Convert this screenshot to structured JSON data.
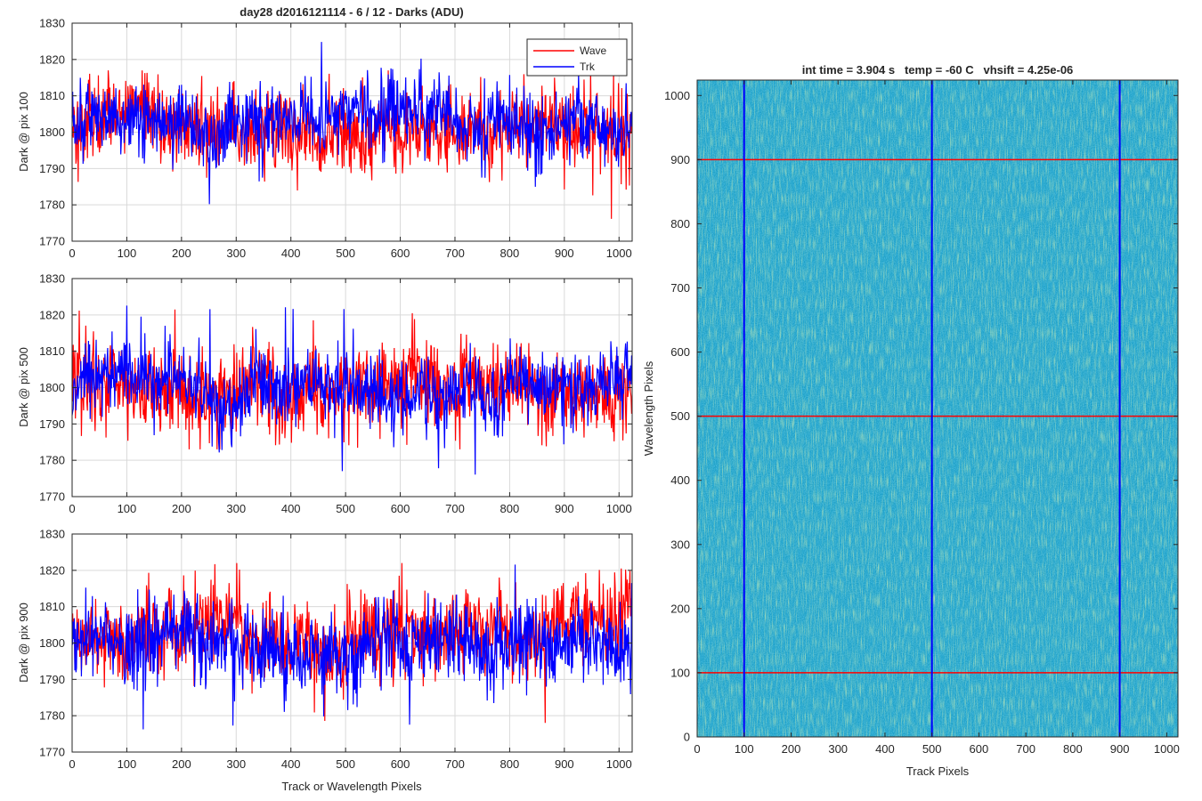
{
  "figure_title": "day28 d2016121114 - 6 / 12 - Darks (ADU)",
  "colors": {
    "wave": "#ff0000",
    "trk": "#0000ff",
    "grid": "#d9d9d9",
    "axis": "#262626"
  },
  "chart_data": [
    {
      "type": "line",
      "title": "day28 d2016121114 - 6 / 12 - Darks (ADU)",
      "xlabel": "",
      "ylabel": "Dark @ pix 100",
      "xlim": [
        0,
        1024
      ],
      "ylim": [
        1770,
        1830
      ],
      "x_ticks": [
        0,
        100,
        200,
        300,
        400,
        500,
        600,
        700,
        800,
        900,
        1000
      ],
      "y_ticks": [
        1770,
        1780,
        1790,
        1800,
        1810,
        1820,
        1830
      ],
      "grid": true,
      "legend": {
        "position": "top-right",
        "entries": [
          "Wave",
          "Trk"
        ]
      },
      "series": [
        {
          "name": "Wave",
          "color": "#ff0000",
          "mean": 1801,
          "noise": 5.5,
          "min": 1776,
          "max": 1817,
          "n": 1024
        },
        {
          "name": "Trk",
          "color": "#0000ff",
          "mean": 1802,
          "noise": 5.0,
          "min": 1780,
          "max": 1826,
          "n": 1024
        }
      ]
    },
    {
      "type": "line",
      "title": "",
      "xlabel": "",
      "ylabel": "Dark @ pix 500",
      "xlim": [
        0,
        1024
      ],
      "ylim": [
        1770,
        1830
      ],
      "x_ticks": [
        0,
        100,
        200,
        300,
        400,
        500,
        600,
        700,
        800,
        900,
        1000
      ],
      "y_ticks": [
        1770,
        1780,
        1790,
        1800,
        1810,
        1820,
        1830
      ],
      "grid": true,
      "series": [
        {
          "name": "Wave",
          "color": "#ff0000",
          "mean": 1801,
          "noise": 6.0,
          "min": 1783,
          "max": 1823,
          "n": 1024
        },
        {
          "name": "Trk",
          "color": "#0000ff",
          "mean": 1801,
          "noise": 5.0,
          "min": 1776,
          "max": 1823,
          "n": 1024
        }
      ]
    },
    {
      "type": "line",
      "title": "",
      "xlabel": "Track or Wavelength Pixels",
      "ylabel": "Dark @ pix 900",
      "xlim": [
        0,
        1024
      ],
      "ylim": [
        1770,
        1830
      ],
      "x_ticks": [
        0,
        100,
        200,
        300,
        400,
        500,
        600,
        700,
        800,
        900,
        1000
      ],
      "y_ticks": [
        1770,
        1780,
        1790,
        1800,
        1810,
        1820,
        1830
      ],
      "grid": true,
      "series": [
        {
          "name": "Wave",
          "color": "#ff0000",
          "mean": 1802,
          "noise": 6.0,
          "min": 1777,
          "max": 1822,
          "n": 1024
        },
        {
          "name": "Trk",
          "color": "#0000ff",
          "mean": 1801,
          "noise": 5.5,
          "min": 1776,
          "max": 1822,
          "n": 1024
        }
      ]
    },
    {
      "type": "heatmap",
      "title": "int time = 3.904 s   temp = -60 C   vhsift = 4.25e-06",
      "xlabel": "Track Pixels",
      "ylabel": "Wavelength Pixels",
      "xlim": [
        0,
        1024
      ],
      "ylim": [
        0,
        1024
      ],
      "x_ticks": [
        0,
        100,
        200,
        300,
        400,
        500,
        600,
        700,
        800,
        900,
        1000
      ],
      "y_ticks": [
        0,
        100,
        200,
        300,
        400,
        500,
        600,
        700,
        800,
        900,
        1000
      ],
      "colormap": [
        "#1a8fcf",
        "#21a8bf",
        "#2cb5a8",
        "#6cc07a"
      ],
      "vertical_lines": {
        "x": [
          100,
          500,
          900
        ],
        "color": "#0000ff"
      },
      "horizontal_lines": {
        "y": [
          100,
          500,
          900
        ],
        "color": "#ff0000"
      }
    }
  ]
}
